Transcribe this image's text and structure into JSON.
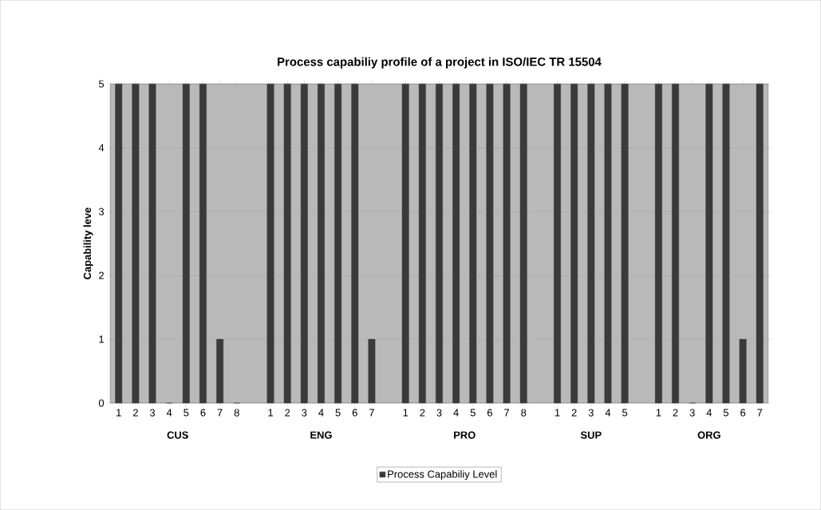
{
  "chart_data": {
    "type": "bar",
    "title": "Process capabiliy profile of a project in ISO/IEC TR 15504",
    "ylabel": "Capability leve",
    "categories": [
      "1",
      "2",
      "3",
      "4",
      "5",
      "6",
      "7",
      "8",
      null,
      "1",
      "2",
      "3",
      "4",
      "5",
      "6",
      "7",
      null,
      "1",
      "2",
      "3",
      "4",
      "5",
      "6",
      "7",
      "8",
      null,
      "1",
      "2",
      "3",
      "4",
      "5",
      null,
      "1",
      "2",
      "3",
      "4",
      "5",
      "6",
      "7"
    ],
    "series": [
      {
        "name": "Process Capabiliy Level",
        "color": "#3a3a3a",
        "values": [
          5,
          5,
          5,
          0,
          5,
          5,
          1,
          0,
          null,
          5,
          5,
          5,
          5,
          5,
          5,
          1,
          null,
          5,
          5,
          5,
          5,
          5,
          5,
          5,
          5,
          null,
          5,
          5,
          5,
          5,
          5,
          null,
          5,
          5,
          0,
          5,
          5,
          1,
          5
        ]
      }
    ],
    "annotations": [
      "CUS",
      "ENG",
      "PRO",
      "SUP",
      "ORG"
    ],
    "ylim": [
      0,
      5
    ],
    "yticks": [
      0,
      1,
      2,
      3,
      4,
      5
    ],
    "grid": "y",
    "legend": "bottom"
  }
}
